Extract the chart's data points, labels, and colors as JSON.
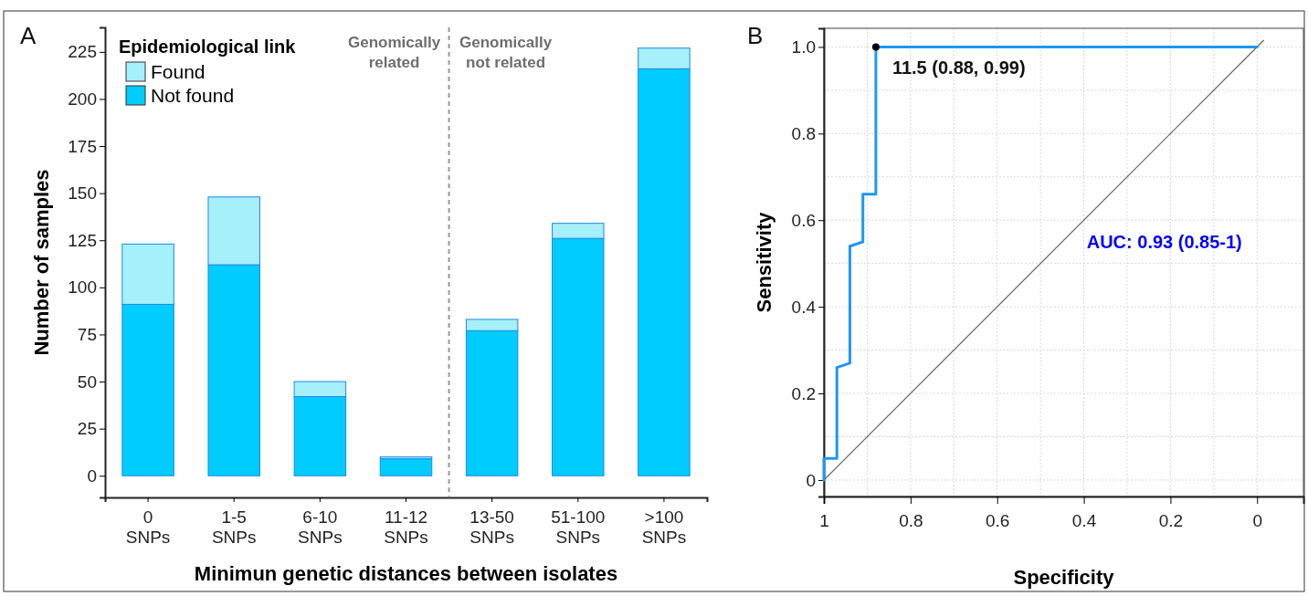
{
  "chart_data": [
    {
      "type": "bar",
      "title": "A",
      "xlabel": "Minimun genetic distances between isolates",
      "ylabel": "Number of samples",
      "legend_title": "Epidemiological link",
      "legend": "top left",
      "stacked": true,
      "categories": [
        "0 SNPs",
        "1-5 SNPs",
        "6-10 SNPs",
        "11-12 SNPs",
        "13-50 SNPs",
        "51-100 SNPs",
        ">100 SNPs"
      ],
      "series": [
        {
          "name": "Not found",
          "color": "#00ccff",
          "values": [
            91,
            112,
            42,
            9,
            77,
            126,
            216
          ]
        },
        {
          "name": "Found",
          "color": "#a6f0fc",
          "values": [
            32,
            36,
            8,
            1,
            6,
            8,
            11
          ]
        }
      ],
      "ylim": [
        -11.5,
        238
      ],
      "yticks": [
        0,
        25,
        50,
        75,
        100,
        125,
        150,
        175,
        200,
        225
      ],
      "grid": false,
      "annotations": [
        "Genomically related",
        "Genomically not related"
      ]
    },
    {
      "type": "line",
      "title": "B",
      "xlabel": "Specificity",
      "ylabel": "Sensitivity",
      "grid": true,
      "marker": "none",
      "series": [
        {
          "type": "line",
          "color": "#666666",
          "x": [
            1,
            -0.015
          ],
          "values": [
            0,
            1.015
          ]
        },
        {
          "type": "line",
          "color": "#2196f3",
          "x": [
            1,
            1,
            0.97,
            0.97,
            0.94,
            0.94,
            0.91,
            0.91,
            0.88,
            0.88,
            0
          ],
          "values": [
            0,
            0.05,
            0.05,
            0.26,
            0.27,
            0.54,
            0.55,
            0.66,
            0.66,
            1,
            1
          ]
        },
        {
          "type": "scatter",
          "marker": "circle",
          "color": "#000000",
          "x": [
            0.88
          ],
          "values": [
            1
          ]
        }
      ],
      "xlim": [
        1,
        -0.107
      ],
      "ylim": [
        -0.038,
        1.043
      ],
      "xticks": [
        1,
        {
          "value": 0.9,
          "label": null
        },
        0.8,
        {
          "value": 0.7,
          "label": null
        },
        0.6,
        {
          "value": 0.5,
          "label": null
        },
        0.4,
        {
          "value": 0.3,
          "label": null
        },
        0.2,
        {
          "value": 0.1,
          "label": null
        },
        0
      ],
      "yticks": [
        0,
        {
          "value": 0.1,
          "label": null
        },
        0.2,
        {
          "value": 0.3,
          "label": null
        },
        0.4,
        {
          "value": 0.5,
          "label": null
        },
        0.6,
        {
          "value": 0.7,
          "label": null
        },
        0.8,
        {
          "value": 0.9,
          "label": null
        },
        {
          "value": 1,
          "label": "1.0"
        }
      ],
      "annotations": [
        {
          "text": "11.5 (0.88, 0.99)",
          "x": 0.88,
          "y": 1
        },
        "AUC: 0.93 (0.85-1)"
      ]
    }
  ]
}
